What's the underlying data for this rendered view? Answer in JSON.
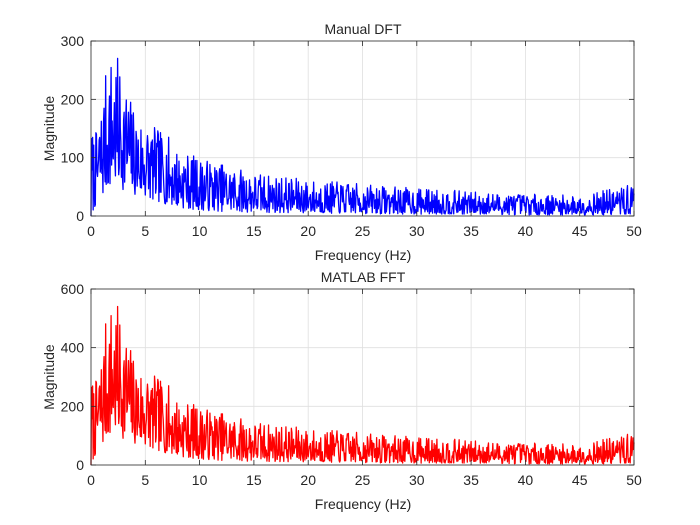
{
  "chart_data": [
    {
      "type": "line",
      "title": "Manual DFT",
      "xlabel": "Frequency (Hz)",
      "ylabel": "Magnitude",
      "xlim": [
        0,
        50
      ],
      "ylim": [
        0,
        300
      ],
      "xticks": [
        0,
        5,
        10,
        15,
        20,
        25,
        30,
        35,
        40,
        45,
        50
      ],
      "yticks": [
        0,
        100,
        200,
        300
      ],
      "grid": true,
      "color": "#0000ff",
      "envelope": {
        "x": [
          0,
          0.5,
          1,
          1.5,
          2,
          2.5,
          3,
          3.5,
          4,
          5,
          6,
          7,
          8,
          10,
          12,
          15,
          20,
          25,
          30,
          35,
          40,
          45,
          50
        ],
        "peak": [
          150,
          145,
          200,
          265,
          282,
          270,
          240,
          215,
          180,
          165,
          150,
          140,
          115,
          100,
          90,
          75,
          62,
          55,
          48,
          42,
          38,
          35,
          55
        ],
        "floor": [
          0,
          20,
          30,
          45,
          50,
          50,
          45,
          40,
          35,
          30,
          25,
          20,
          15,
          10,
          8,
          6,
          5,
          4,
          3,
          3,
          2,
          2,
          2
        ]
      },
      "series": [
        {
          "x_start": 0,
          "x_end": 50,
          "points": 1000,
          "seed": 7
        }
      ]
    },
    {
      "type": "line",
      "title": "MATLAB FFT",
      "xlabel": "Frequency (Hz)",
      "ylabel": "Magnitude",
      "xlim": [
        0,
        50
      ],
      "ylim": [
        0,
        600
      ],
      "xticks": [
        0,
        5,
        10,
        15,
        20,
        25,
        30,
        35,
        40,
        45,
        50
      ],
      "yticks": [
        0,
        200,
        400,
        600
      ],
      "grid": true,
      "color": "#ff0000",
      "envelope": {
        "x": [
          0,
          0.5,
          1,
          1.5,
          2,
          2.5,
          3,
          3.5,
          4,
          5,
          6,
          7,
          8,
          10,
          12,
          15,
          20,
          25,
          30,
          35,
          40,
          45,
          50
        ],
        "peak": [
          300,
          290,
          400,
          530,
          564,
          540,
          480,
          430,
          360,
          330,
          300,
          280,
          230,
          200,
          180,
          150,
          124,
          110,
          96,
          84,
          76,
          70,
          110
        ],
        "floor": [
          0,
          40,
          60,
          90,
          100,
          100,
          90,
          80,
          70,
          60,
          50,
          40,
          30,
          20,
          16,
          12,
          10,
          8,
          6,
          6,
          4,
          4,
          4
        ]
      },
      "series": [
        {
          "x_start": 0,
          "x_end": 50,
          "points": 1000,
          "seed": 7
        }
      ]
    }
  ]
}
